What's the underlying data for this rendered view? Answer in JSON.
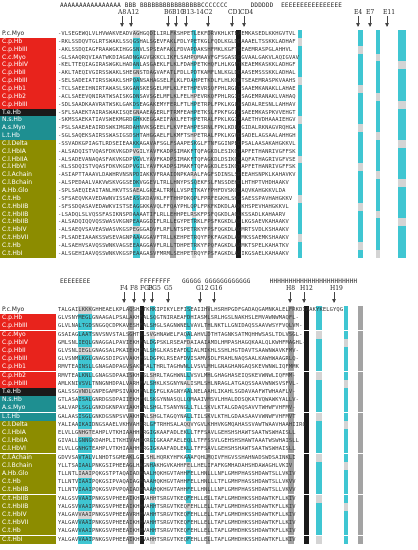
{
  "groups": {
    "white": "#ffffff",
    "red": "#e8231c",
    "black": "#1a1a1a",
    "teal": "#1e8f91",
    "olive": "#8c8c00"
  },
  "species": [
    {
      "label": "P.c.Myo",
      "group": "white"
    },
    {
      "label": "C.p.Hb",
      "group": "red"
    },
    {
      "label": "C.p.HbIII",
      "group": "red"
    },
    {
      "label": "C.c.Myo",
      "group": "red"
    },
    {
      "label": "C.p.HbIV",
      "group": "red"
    },
    {
      "label": "C.p.HbII",
      "group": "red"
    },
    {
      "label": "C.p.HbIII",
      "group": "red"
    },
    {
      "label": "C.p.Hb1",
      "group": "red"
    },
    {
      "label": "C.p.Hb2",
      "group": "red"
    },
    {
      "label": "C.p.HbIII",
      "group": "red"
    },
    {
      "label": "T.e.Hb",
      "group": "black"
    },
    {
      "label": "N.s.Hb",
      "group": "teal"
    },
    {
      "label": "A.s.Myo",
      "group": "teal"
    },
    {
      "label": "L.t.Hb",
      "group": "teal"
    },
    {
      "label": "C.l.Delta",
      "group": "olive"
    },
    {
      "label": "C.l.HbIA",
      "group": "olive"
    },
    {
      "label": "C.l.HbIIA",
      "group": "olive"
    },
    {
      "label": "C.l.HbVI",
      "group": "olive"
    },
    {
      "label": "C.l.Achain",
      "group": "olive"
    },
    {
      "label": "C.l.Bchain",
      "group": "olive"
    },
    {
      "label": "A.Hb.Glo",
      "group": "olive"
    },
    {
      "label": "C.t.Hb",
      "group": "olive"
    },
    {
      "label": "C.t.HbIIB",
      "group": "olive"
    },
    {
      "label": "C.t.HbIIB",
      "group": "olive"
    },
    {
      "label": "C.t.HbIIB",
      "group": "olive"
    },
    {
      "label": "C.t.HbIV",
      "group": "olive"
    },
    {
      "label": "C.t.HbVII",
      "group": "olive"
    },
    {
      "label": "C.t.Hb",
      "group": "olive"
    },
    {
      "label": "C.t.HbI",
      "group": "olive"
    }
  ],
  "top": {
    "ss_line": "AAAAAAAAAAAAAAAA BBB BBBBBBBBBBBBBBBBCCCCCCC      DDDDDD  EEEEEEEEEEEEEEEE",
    "positions": [
      {
        "label": "A8"
      },
      {
        "label": "A12"
      },
      {
        "label": "B6"
      },
      {
        "label": "B10"
      },
      {
        "label": "B13-14"
      },
      {
        "label": "C2"
      },
      {
        "label": "CD1"
      },
      {
        "label": "CD4"
      },
      {
        "label": "E4"
      },
      {
        "label": "E7"
      },
      {
        "label": "E11"
      }
    ],
    "sequences": [
      "-VLSEGEWQLVLHVWAKVEADVAGHGQDILIRLFKSHPETLEKFDRVKHLKTEAEMKASEDLKKHGVTVL",
      "-RKLSSDQVTGLRTSWAKLSSQGSHALSGEVFAKLFDLYPETKGLFQDLKGLDDAAAELTSSKKLADHAF",
      "-AKLSSDQIAGFRAAWGKIHGGSNVLSPSEAFAKLFDVAPDAKSHFMKLKGFTSEAEMRASPGLAHHVL",
      "-GLSAAQRQVIAATWKDIAGADNGAGVGKKCLIKFLSAHPQMAAVFGFSGASDPGVAALGAKVLAQIGVAV",
      "-KELTTEQIAGIRASWGKLHADANLASGAEKLFLKLFDAHPETKHQFLHLKGFTKEAEMKASKKLADHGF",
      "-AKLTAEQIVGIRSSWAKLSHEGNSTDAGVAFATLFDLLPDTKAMFLNLKGLDDAASEMSSSKKLADHAL",
      "-SELSADEIATIRSSWAKLSHPQANSAHAGSELFLKLFDAHPETKDLFLHLKGMTSEAEMRASPKVAAHS",
      "-TCLSAEEIHNIRTAWASLSKGANSKESGELMFLKLFETHPEVRSQFPHLRGLTSAAEMKANAKLLAHAE",
      "-ACLSAEEVQNIRATWSAISKGDNSAVSGELMFLKLFELHPEVRKQFPHLRGIDSAGEMRANAKLVAHAQ",
      "-SDLSAADKAAVRATWSKLGAKDSEAGAKEMYFERLFTLHPETRPLFPKLKGLNSADALRESNLLAHHAV",
      "-SFLSAAEKTAIRASWAKISQEGNAAEAGERLFTRMFEAHPETKSLFPKFGGLHSAEEMKASPKVVEHGT",
      "-SKMSSAEKATIAVSWEKMGRDGHKKEGGAEIFAKLFETHPETRALFPKLKGIAAAETHVDHAAAIEHGV",
      "-PSLSAAEAEAIRDSWKIMGRDAHNVKSGEELFLKVFEAHPESRNLFPKLKDLGGIDALRKNAGVRQHGA",
      "-SGLSAQEKSAIRSSWASIGSDSHTAHGGAELFLKMFTSHPETRALFPKLKGVDSADELAGSAALAHHGH",
      "-SSVADKGPIAGTLRDSEIEAAKKAGAVAFSGLFSAAPESKGLFTNFGGINPEDPSALAASAKAHGKKVL",
      "-ALSADQISTVQASFDKVKGDPVGILYAVFKADPSIMAKFTQFAGKDLESIKGTAPFETHANRIVGFFSK",
      "-ALSADEVANAQASFAKVKGDPVGVLYAVFKADPSIMAKFTQFAGKDLDSIKGSAQFATHAGRIVGFVSE",
      "-KLSSDQISTVQASFDKVKGDPVGILYAVFKADPSIMAKFTQFAGKDLESIKGTAPFETHANRIVGFFSK",
      "-ASIAPTTAAAVLDAWHRVNSNPDIAKKVFRAAIDNPKARALFAGFSDINSLSPEEAHSNPKLKAHAVKV",
      "-ALSPEDAALVAKVWSKVGGSEDKVGGEVLTRLLHNYPSSQEKFSLFNSSDEHDLHTHPTVHDHAAKV",
      "-SPLSAEQIEAITANLHKVTSSAEALGKEALTRMLLVSPETKAYFPHFDVSKGSAQVKAHGKKVLDA",
      "-SFSAEQVKAVEDAWNVISSAEASGKDAVKLFFTHHPDKQPLFPRFEGKHLSHSSAESSPAVHAHGKKV",
      "-SFSSDQASAVEDAWKVISTSEAGGKKAVQLFFQAYPHLQPLFPKFKDKDLAAMKHSPEVHAHGKKVL",
      "-LSADQLSLVQSSFASIKNSPDAAAATIFLRLLEHHPELRSKFPSFQGKDLAGLKSSADLKAHAARV",
      "-ALSADQIQQVQSSWASVKGNPEAAGGDIFLRLLEGYPETRKLFPSFKGKDLASLKGSAEVKAHAAKV",
      "-ALSAEQVSAVEASWASVKGSPEGGGADVFLRFLNTSPETRKYFPSFQGKDLAGMRTSVDLKSHAAKV",
      "-PLSADEIAAAKSSWSEVAGNPAAAGGAVFTRLLKEHPETRQYFPKFAGKDLASMKSSAEMKSHAAKV",
      "-ALSAEHVSAVQSSWNKVAGSEEAAGGAVFLRLLTDHPETRKYFPQFAGKDLAAMKTSPELKAHATKV",
      "-ALSGEHIAAVQSSWNKVKGSPEAAGASVFMRMLSEHPETRQYFPSFAGKDLASIKGSAELKAHAAKV"
    ]
  },
  "bottom": {
    "ss_line": "EEEEEEEE             FFFFFFFF   GGGGG GGGGGGGGGGGG     HHHHHHHHHHHHHHHHHHHHHHH",
    "positions": [
      {
        "label": "F4"
      },
      {
        "label": "F8"
      },
      {
        "label": "FG3"
      },
      {
        "label": "FG5"
      },
      {
        "label": "G5"
      },
      {
        "label": "G12"
      },
      {
        "label": "G16"
      },
      {
        "label": "H8"
      },
      {
        "label": "H12"
      },
      {
        "label": "H19"
      }
    ],
    "sequences": [
      "TALGAILKKKGHHEAELKPLAQSHATKHKIPIKYLEFISEAIIHVLHSRHPGDFGADAQGAMNKALELFRKDIAAKYKELGYQG",
      "GLVSNYMEGLGNAAGALPSALAKHFALSQGTNIRAEAFDHIASMLSRLHGSLNAKHSLEMVAWNWMAQFL-",
      "GLVLNALTGDSNGGQCDPKAVESHFALSHGLSAGNWNELVAVLTHLNKTLLGNIDAQSSAAVWSYFVQLVM-",
      "GSAIAGLAATSNVSNVSTALSGHTSLSVGHNAWELFAQALAHVLDTHTAGNKSATMQHHWSASLTDLVSGL-",
      "GMLSNLIEQLGNAGGALPAVIEKHFALDGPSKLRSEAFDAIAAIAMDLHMPASHAGQKAALQLKWHFMAGHL-",
      "GLVSNLIEGLGNAGSALPKAIEKHFALSHGLKASEAFDLIALMIKHLSSHLHGTDAVTSAAWNWAVKFMV-",
      "GLVSNMLKGLGNAGSDIPGVVAKHFSLDGPKLRSEAFDVISAMVSDLFRAHLNAQSAALKAWHWAAGRLQ-",
      "RMVTEAINSLLGNAGADPAGVSAKHFALTHRLTAGHWNLLVSVLMHLGNAGHANGAQSKEVWNWLIQFMMK",
      "RMVTEALKNLLGNAGSDPAAISKHFSLSHRLTAGHWNLLVSVLMHLGHAGHASEIQSKEVWNWLIQFMM-",
      "AMLKNIVSVLTNNGNHDPALVARHFVLSHKLKSGNYNALISMLSHLNRAGLATGAQSSAAVWNWSVSFVL-",
      "GALSSGVNDLGNPEGAMPSIVAKHFALEGFGLKAGNYAALNELAAHLIKAHLSGDAVAAFWTWHAAFLV-",
      "GTLASAISALGNRDGSDPAIIEKHFNLSKGYNNASQLLQMAAIVMSVLHHALDDSQKATVQWAWKYALLV-",
      "SALVAPLSGLGNKDGKNPAVIAKHFALSHGLTSANYNGLLTLLSKVLKTALGDAQSAVVTWHWFVHFMV-",
      "GALAASISGLGNKDGSNPSVVAKHFALSHGLTAGQYNALLTILSKVLKTHLGDAASAAVVWNWFVHFMVT",
      "YALIAAIKAIDNGSAAELVKHVAHRRLGFTRHHSALAQQVYGVLKHHVKGMQAHASSVAWTWAAVHAAHIIRQ",
      "ELVLLGNHGTEAHPLVTKHIAAHHKRGIGKAAFADLEKLLTFFSAVLGEHSHSHAWTSAATWSWHAISLL",
      "GIVALLGNNGKDAHPLITKHIVAHHKRGIGKAAFAELEQLLTFFSSVLGEHSHSHAWTAAATWSWHAISLL",
      "ELVLLGNHGTEAHPLVTKHIAAHHKRGIGKAAFADLEKLLTFFSAVLGEHSHSHAWTSAATWSWHAISLL",
      "GDVVSAVTALVLNHDTSGMEAKLGELSHLHQRKYHFKAAAFQHLMQIVFHGVSSHAHNADSWDSAINKLI",
      "YLLTSAIAALPNKGSIPHEEAGLHAGNHAKHGVKAHHFELLHELIFAFKGMHADAHSHDAWAGHLVKIV",
      "TLLNTLIAAIPQKGSTPTAQAIADHAALHQKHGVTAHHFELLHNLLLNFLGMHPHASSHDAWTSLLVKIV",
      "TLLNTVIAAIPQKGSIPVAQAIAGHAAAHQKHGVTAHHFELLHNLLLTFLGMHPHASSHDAWTSLLVKVV",
      "TLLNTVIAAIPQKGSVPVPQAIADHAAAHQKHGVTAHHFELLHNLLLNFLGMHPHASSHDAWTSLLVKVV",
      "YALGSVVAAIPNKGSVPHEEAIKHHVAHHTSRGVTKEQFEHLLELLTAFLGMHDHKSSHDAWTKFLLKIV",
      "YALGSVVAAIPNKGSVPHEEAIKHHVAHHTSRGVTKEQFEHLLELLTAFLGMHDHASSHDAWTKFLLKIV",
      "YALGAVVAAIPNKGSVPHEEAVRHHVAHHTSRGVTKEQFEHLLELLTAFLGMHDHKSSHDAWTKFLLKIV",
      "YALGAVVAAIPNKGSVPHEEAIKHHVAHHTSRGVTKEQFEHLLELLTAFLGMHDHKSSHDAWTKFLLKIV",
      "YALGAVVAAIPNKGSVPHEEAIKHHVAHHTSRGVTKEQFEHLLELLTAFLGMHDHKSSHDAWTKFLLKIV",
      "YALGAVVAAIPNKGSVPHEEAIKHHVAHHTSRGVTKEQFEHLLELLTAFLGMHDHKSSHDAWTKFLLKIV"
    ]
  }
}
